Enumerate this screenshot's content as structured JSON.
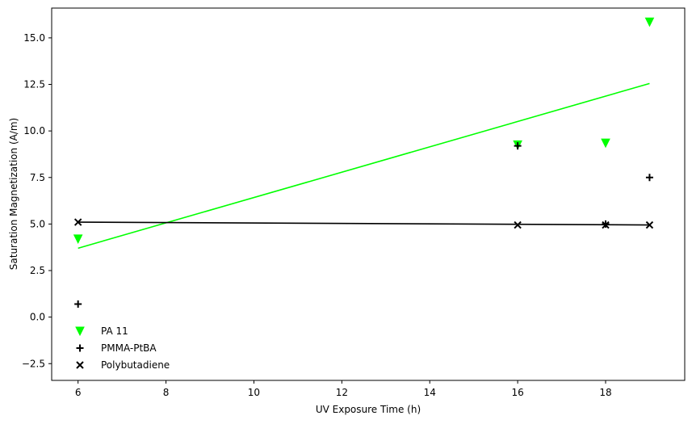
{
  "chart_data": {
    "type": "scatter",
    "title": "",
    "xlabel": "UV Exposure Time (h)",
    "ylabel": "Saturation Magnetization (A/m)",
    "xlim": [
      5.4,
      19.8
    ],
    "ylim": [
      -3.4,
      16.6
    ],
    "xticks": [
      6,
      8,
      10,
      12,
      14,
      16,
      18
    ],
    "yticks": [
      -2.5,
      0.0,
      2.5,
      5.0,
      7.5,
      10.0,
      12.5,
      15.0
    ],
    "xtick_labels": [
      "6",
      "8",
      "10",
      "12",
      "14",
      "16",
      "18"
    ],
    "ytick_labels": [
      "−2.5",
      "0.0",
      "2.5",
      "5.0",
      "7.5",
      "10.0",
      "12.5",
      "15.0"
    ],
    "grid": false,
    "legend_position": "lower-left",
    "series": [
      {
        "name": "PA 11",
        "marker": "triangle-down",
        "color": "#00ff00",
        "x": [
          6,
          16,
          18,
          19
        ],
        "y": [
          4.2,
          9.25,
          9.35,
          15.85
        ],
        "fit": {
          "x": [
            6,
            19
          ],
          "y": [
            3.7,
            12.55
          ]
        }
      },
      {
        "name": "PMMA-PtBA",
        "marker": "plus",
        "color": "#000000",
        "x": [
          6,
          16,
          18,
          19
        ],
        "y": [
          0.7,
          9.2,
          5.0,
          7.5
        ]
      },
      {
        "name": "Polybutadiene",
        "marker": "x",
        "color": "#000000",
        "x": [
          6,
          16,
          18,
          19
        ],
        "y": [
          5.1,
          4.95,
          4.95,
          4.95
        ],
        "fit": {
          "x": [
            6,
            19
          ],
          "y": [
            5.1,
            4.95
          ]
        }
      }
    ]
  }
}
